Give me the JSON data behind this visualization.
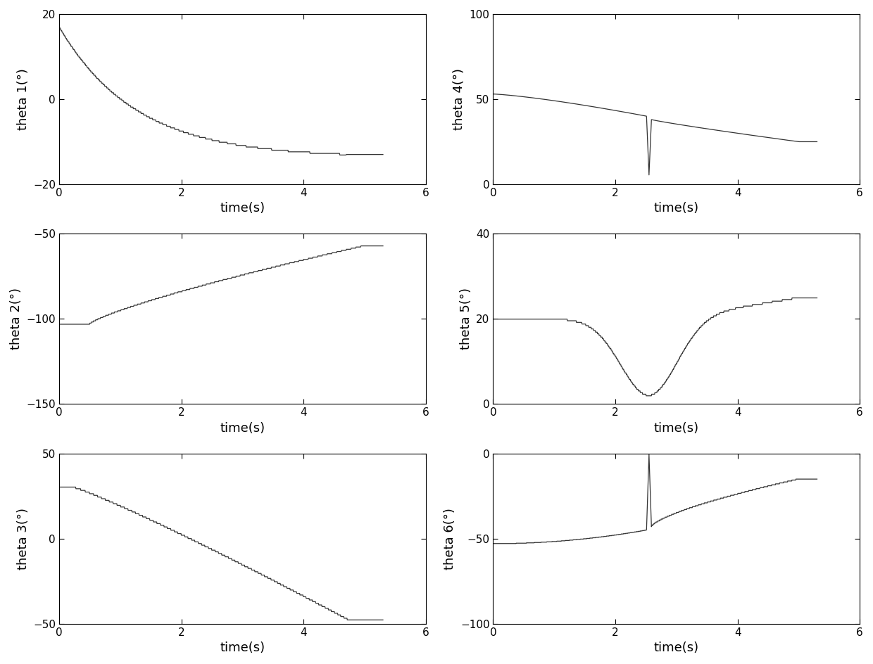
{
  "xlim": [
    0,
    6
  ],
  "xticks": [
    0,
    2,
    4,
    6
  ],
  "xlabel": "time(s)",
  "line_color": "#333333",
  "bg_color": "#ffffff",
  "figsize": [
    12.4,
    9.44
  ],
  "dpi": 100,
  "plots": [
    {
      "ylabel": "theta 1(°)",
      "ylim": [
        -20,
        20
      ],
      "yticks": [
        -20,
        0,
        20
      ],
      "row": 0,
      "col": 0
    },
    {
      "ylabel": "theta 4(°)",
      "ylim": [
        0,
        100
      ],
      "yticks": [
        0,
        50,
        100
      ],
      "row": 0,
      "col": 1
    },
    {
      "ylabel": "theta 2(°)",
      "ylim": [
        -150,
        -50
      ],
      "yticks": [
        -150,
        -100,
        -50
      ],
      "row": 1,
      "col": 0
    },
    {
      "ylabel": "theta 5(°)",
      "ylim": [
        0,
        40
      ],
      "yticks": [
        0,
        20,
        40
      ],
      "row": 1,
      "col": 1
    },
    {
      "ylabel": "theta 3(°)",
      "ylim": [
        -50,
        50
      ],
      "yticks": [
        -50,
        0,
        50
      ],
      "row": 2,
      "col": 0
    },
    {
      "ylabel": "theta 6(°)",
      "ylim": [
        -100,
        0
      ],
      "yticks": [
        -100,
        -50,
        0
      ],
      "row": 2,
      "col": 1
    }
  ]
}
